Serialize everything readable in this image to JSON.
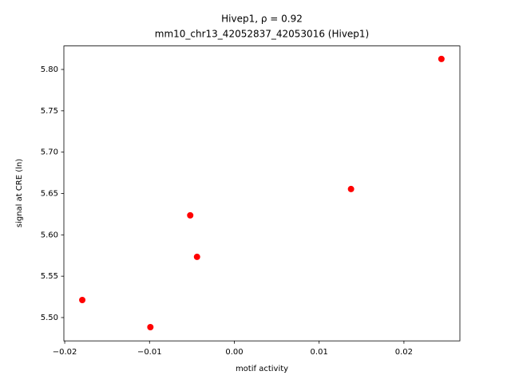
{
  "chart_data": {
    "type": "scatter",
    "title": "Hivep1, ρ = 0.92",
    "subtitle": "mm10_chr13_42052837_42053016 (Hivep1)",
    "x_label": "motif activity",
    "y_label": "signal at CRE (ln)",
    "color": "#ff0000",
    "x": [
      -0.01793,
      -0.0099,
      -0.0052,
      -0.0044,
      0.01376,
      0.02442
    ],
    "values": [
      5.5212,
      5.4884,
      5.6236,
      5.5734,
      5.6554,
      5.8127
    ],
    "xlim": [
      -0.0201,
      0.0266
    ],
    "ylim": [
      5.4718,
      5.8284
    ],
    "xticks": [
      {
        "value": -0.02,
        "label": "−0.02"
      },
      {
        "value": -0.01,
        "label": "−0.01"
      },
      {
        "value": 0,
        "label": "0.00"
      },
      0.01,
      0.02
    ],
    "yticks": [
      {
        "value": 5.5,
        "label": "5.50"
      },
      5.55,
      {
        "value": 5.6,
        "label": "5.60"
      },
      5.65,
      {
        "value": 5.7,
        "label": "5.70"
      },
      5.75,
      {
        "value": 5.8,
        "label": "5.80"
      }
    ]
  }
}
